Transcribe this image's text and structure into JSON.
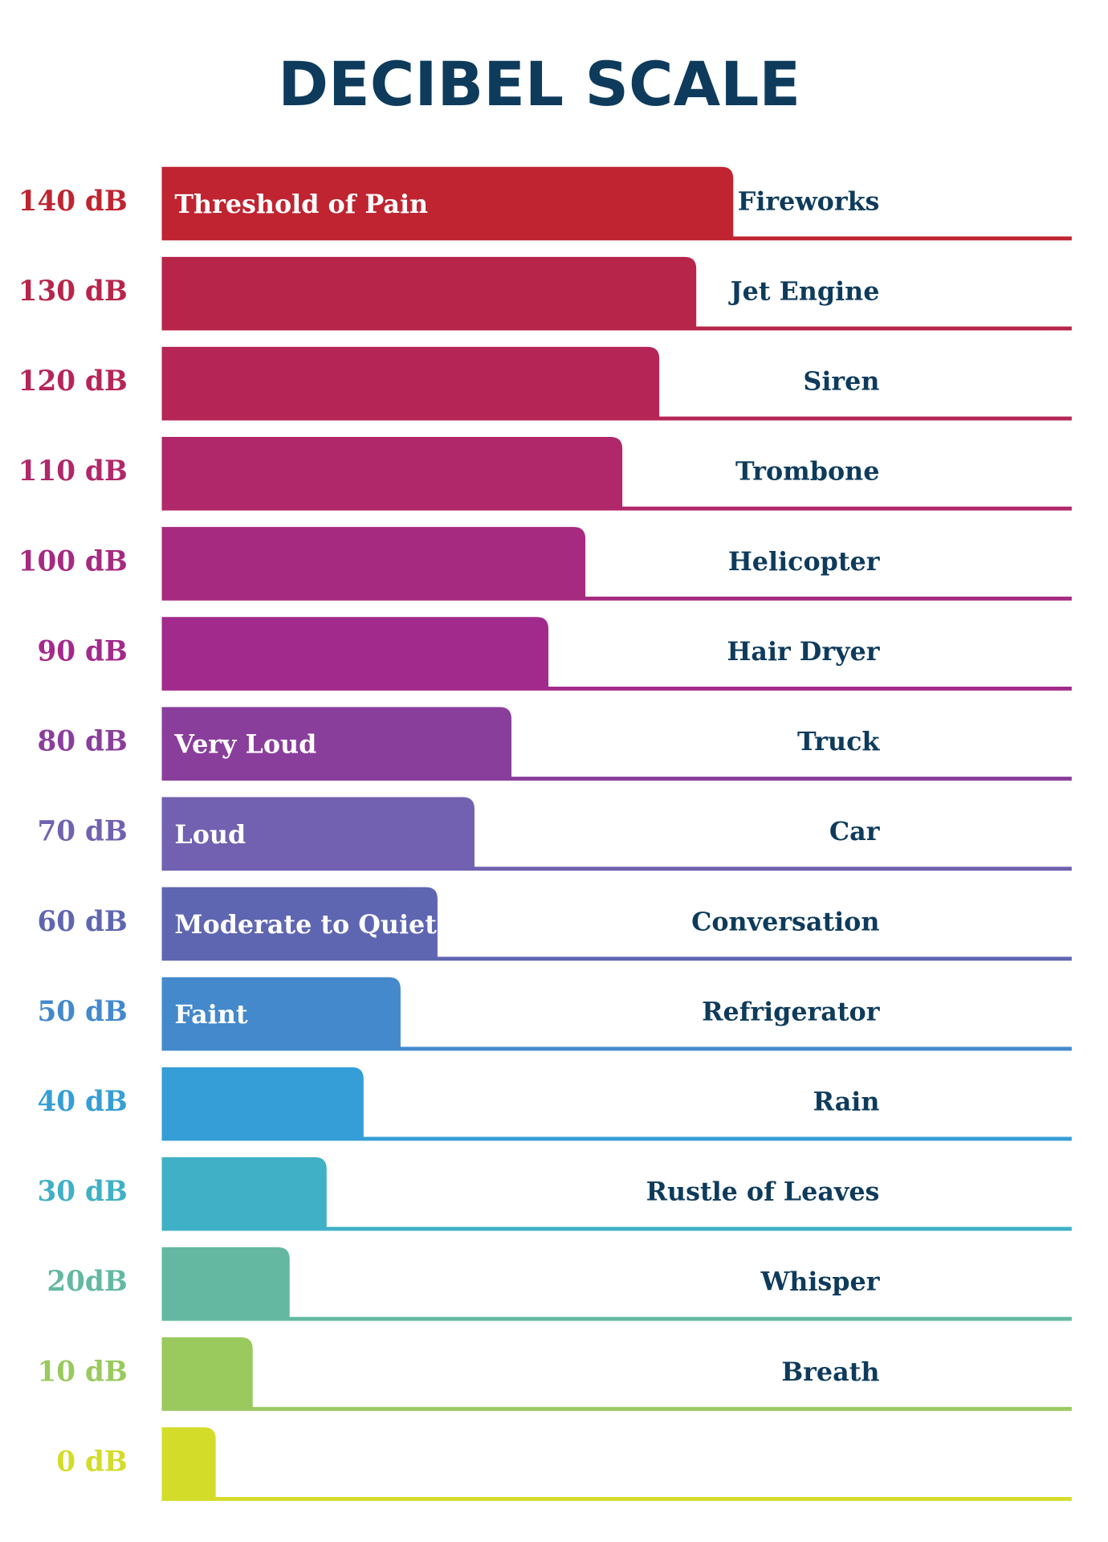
{
  "chart_data": {
    "type": "hbar",
    "title": "DECIBEL SCALE",
    "values": [
      140,
      130,
      120,
      110,
      100,
      90,
      80,
      70,
      60,
      50,
      40,
      30,
      20,
      10,
      0
    ],
    "value_labels": [
      "140 dB",
      "130 dB",
      "120 dB",
      "110 dB",
      "100 dB",
      "90 dB",
      "80 dB",
      "70 dB",
      "60 dB",
      "50 dB",
      "40 dB",
      "30 dB",
      "20dB",
      "10 dB",
      "0 dB"
    ],
    "categories": [
      "Fireworks",
      "Jet Engine",
      "Siren",
      "Trombone",
      "Helicopter",
      "Hair Dryer",
      "Truck",
      "Car",
      "Conversation",
      "Refrigerator",
      "Rain",
      "Rustle of Leaves",
      "Whisper",
      "Breath",
      null
    ],
    "bar_labels": [
      "Threshold of Pain",
      null,
      null,
      null,
      null,
      null,
      "Very Loud",
      "Loud",
      "Moderate to Quiet",
      "Faint",
      null,
      null,
      null,
      null,
      null
    ],
    "colors": [
      "#bf2430",
      "#b8254a",
      "#b52656",
      "#b0286a",
      "#a52a80",
      "#a22a8c",
      "#8a3e9b",
      "#7161b0",
      "#5f66b1",
      "#4489cc",
      "#369ed6",
      "#3fb0c6",
      "#64b8a2",
      "#9ac95e",
      "#d4dc2a"
    ]
  }
}
